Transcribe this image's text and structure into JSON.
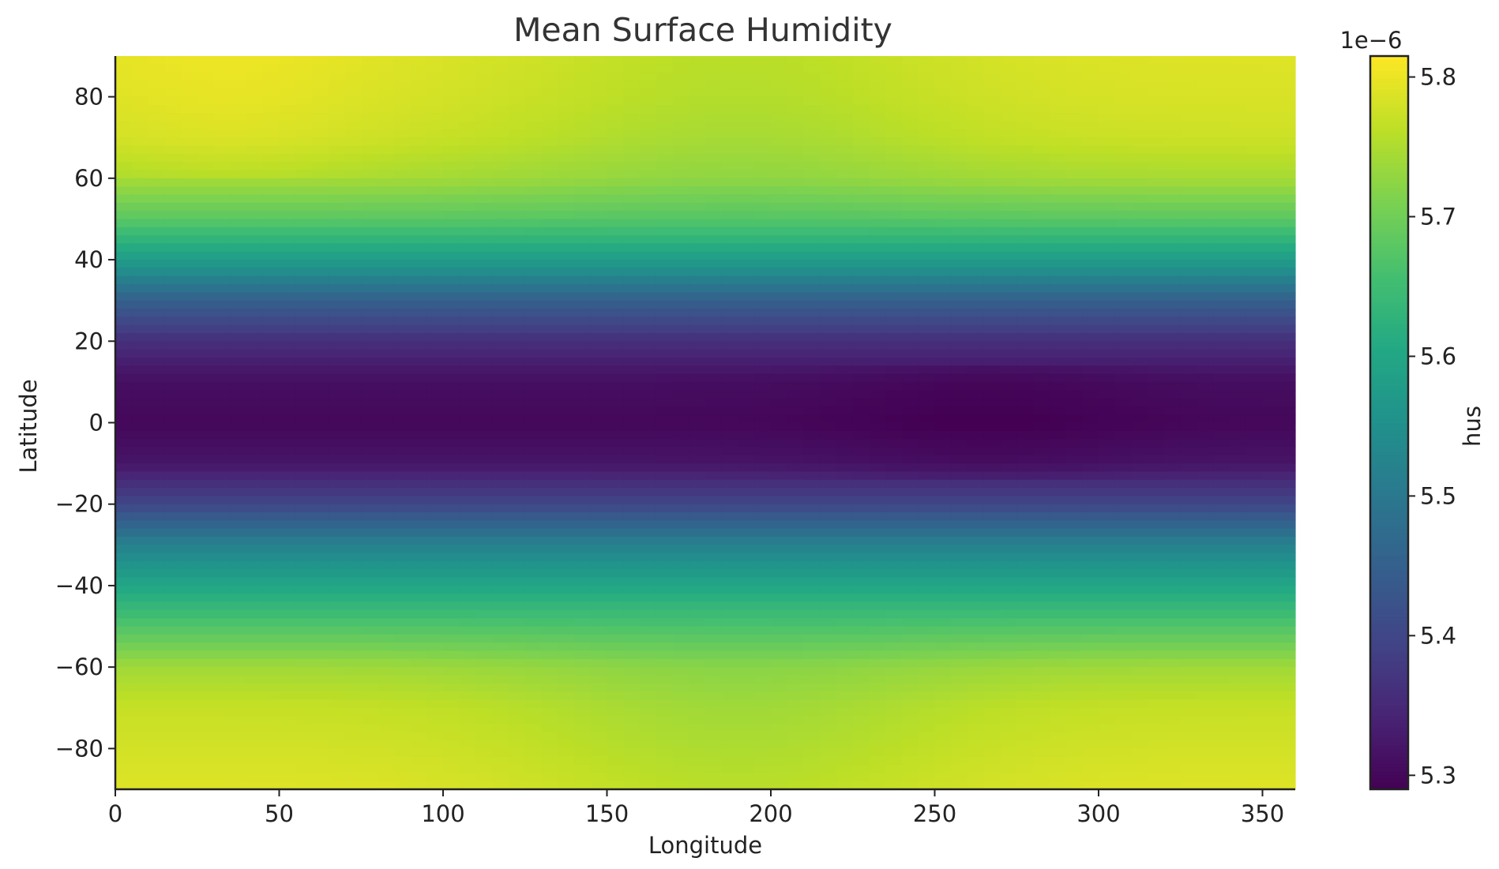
{
  "chart_data": {
    "type": "heatmap",
    "title": "Mean Surface Humidity",
    "xlabel": "Longitude",
    "ylabel": "Latitude",
    "xlim": [
      0,
      360
    ],
    "ylim": [
      -90,
      90
    ],
    "x_ticks": [
      0,
      50,
      100,
      150,
      200,
      250,
      300,
      350
    ],
    "y_ticks": [
      80,
      60,
      40,
      20,
      0,
      -20,
      -40,
      -60,
      -80
    ],
    "y_tick_labels": [
      "80",
      "60",
      "40",
      "20",
      "0",
      "−20",
      "−40",
      "−60",
      "−80"
    ],
    "colormap": "viridis",
    "colorbar": {
      "label": "hus",
      "offset_text": "1e−6",
      "min": 5.29,
      "max": 5.815,
      "ticks": [
        5.3,
        5.4,
        5.5,
        5.6,
        5.7,
        5.8
      ],
      "tick_labels": [
        "5.3",
        "5.4",
        "5.5",
        "5.6",
        "5.7",
        "5.8"
      ]
    },
    "field_description_levels": {
      "latitudes": [
        90,
        80,
        70,
        60,
        50,
        40,
        30,
        20,
        10,
        0,
        -10,
        -20,
        -30,
        -40,
        -50,
        -60,
        -70,
        -80,
        -90
      ],
      "zonal_mean_values": [
        5.79,
        5.785,
        5.775,
        5.745,
        5.68,
        5.58,
        5.45,
        5.36,
        5.31,
        5.3,
        5.32,
        5.4,
        5.52,
        5.6,
        5.67,
        5.74,
        5.77,
        5.78,
        5.79
      ]
    }
  }
}
